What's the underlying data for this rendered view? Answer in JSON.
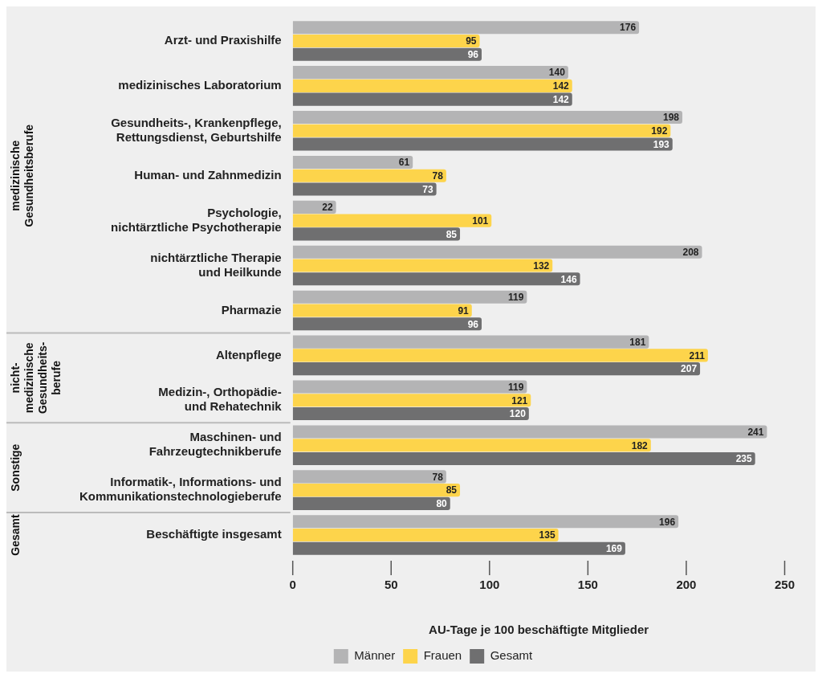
{
  "chart_data": {
    "type": "bar",
    "orientation": "horizontal",
    "categories": [
      "Arzt- und Praxishilfe",
      "medizinisches Laboratorium",
      "Gesundheits-, Krankenpflege,\nRettungsdienst, Geburtshilfe",
      "Human- und Zahnmedizin",
      "Psychologie,\nnichtärztliche Psychotherapie",
      "nichtärztliche Therapie\nund Heilkunde",
      "Pharmazie",
      "Altenpflege",
      "Medizin-, Orthopädie-\nund Rehatechnik",
      "Maschinen- und\nFahrzeugtechnikberufe",
      "Informatik-, Informations- und\nKommunikationstechnologieberufe",
      "Beschäftigte insgesamt"
    ],
    "series": [
      {
        "name": "Männer",
        "color": "#b4b4b5",
        "values": [
          176,
          140,
          198,
          61,
          22,
          208,
          119,
          181,
          119,
          241,
          78,
          196
        ]
      },
      {
        "name": "Frauen",
        "color": "#fdd44b",
        "values": [
          95,
          142,
          192,
          78,
          101,
          132,
          91,
          211,
          121,
          182,
          85,
          135
        ]
      },
      {
        "name": "Gesamt",
        "color": "#6f6f70",
        "values": [
          96,
          142,
          193,
          73,
          85,
          146,
          96,
          207,
          120,
          235,
          80,
          169
        ]
      }
    ],
    "xlabel": "AU-Tage je 100 beschäftigte Mitglieder",
    "xlim": [
      0,
      250
    ],
    "xticks": [
      0,
      50,
      100,
      150,
      200,
      250
    ],
    "grid": false,
    "legend": "bottom",
    "data_labels": true,
    "annotations": [
      "medizinische\nGesundheitsberufe",
      "nicht-\nmedizinische\nGesundheits-\nberufe",
      "Sonstige",
      "Gesamt"
    ]
  }
}
